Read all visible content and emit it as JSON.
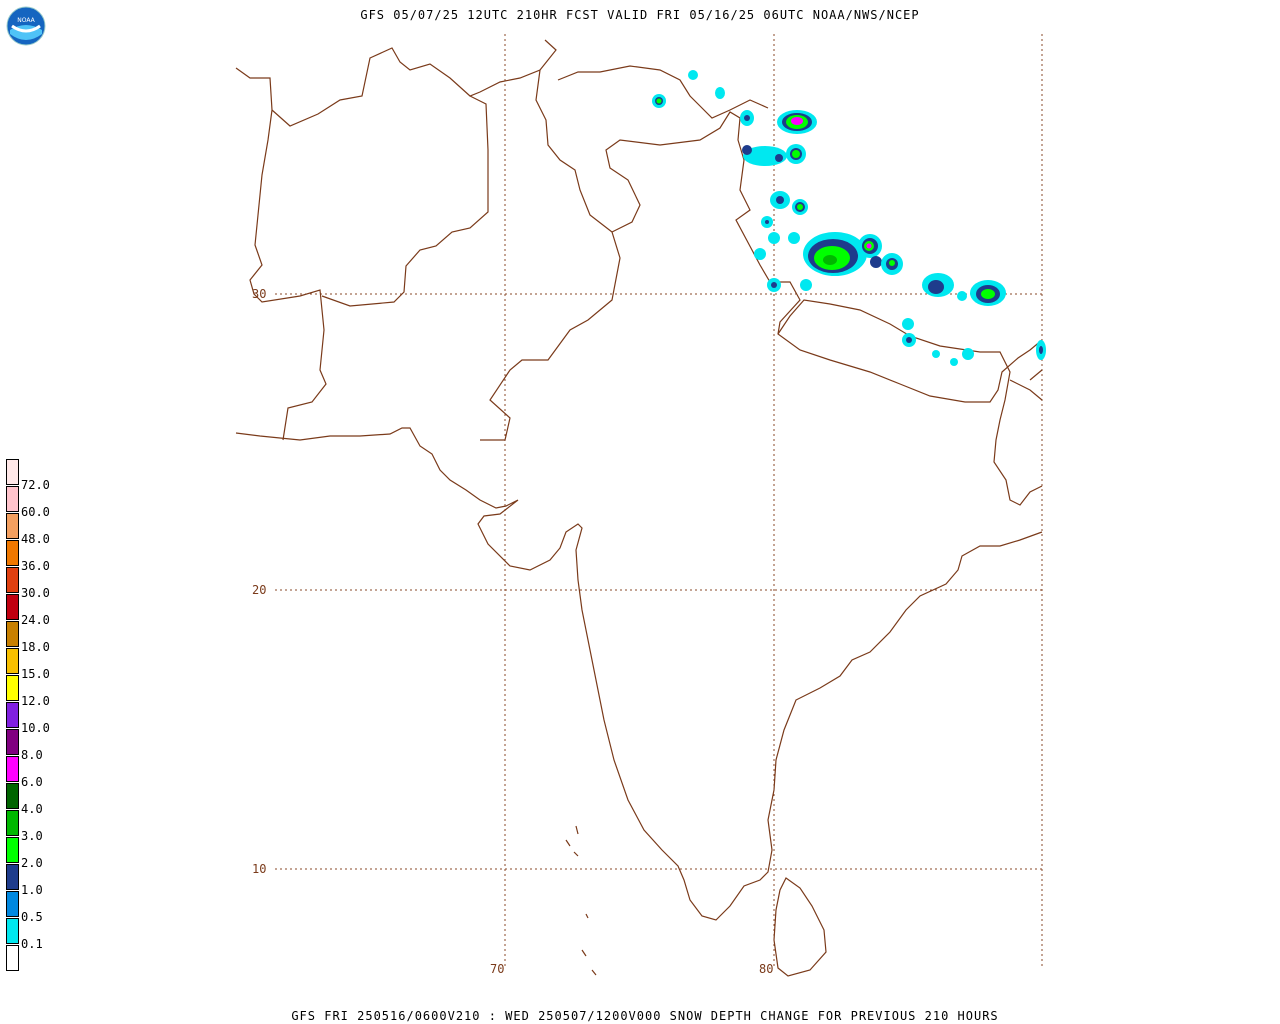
{
  "header": {
    "title": "GFS 05/07/25 12UTC 210HR FCST VALID FRI 05/16/25 06UTC NOAA/NWS/NCEP"
  },
  "footer": {
    "text": "GFS FRI 250516/0600V210 : WED 250507/1200V000 SNOW DEPTH CHANGE FOR PREVIOUS 210 HOURS"
  },
  "logo": {
    "text": "NOAA",
    "icon": "noaa-logo-icon"
  },
  "map": {
    "latitude_labels": [
      "30",
      "20",
      "10"
    ],
    "longitude_labels": [
      "70",
      "80"
    ],
    "coastline_color": "#7a3a1a",
    "grid_color": "#8a4a2a"
  },
  "legend": {
    "entries": [
      {
        "label": "72.0",
        "color": "#ffc4cc"
      },
      {
        "label": "60.0",
        "color": "#f4a060"
      },
      {
        "label": "48.0",
        "color": "#f07800"
      },
      {
        "label": "36.0",
        "color": "#e04010"
      },
      {
        "label": "30.0",
        "color": "#c00010"
      },
      {
        "label": "24.0",
        "color": "#c88000"
      },
      {
        "label": "18.0",
        "color": "#f8c000"
      },
      {
        "label": "15.0",
        "color": "#ffff00"
      },
      {
        "label": "12.0",
        "color": "#8020e0"
      },
      {
        "label": "10.0",
        "color": "#800080"
      },
      {
        "label": "8.0",
        "color": "#ff00ff"
      },
      {
        "label": "6.0",
        "color": "#006400"
      },
      {
        "label": "4.0",
        "color": "#00b800"
      },
      {
        "label": "3.0",
        "color": "#00ff00"
      },
      {
        "label": "2.0",
        "color": "#1e3c8c"
      },
      {
        "label": "1.0",
        "color": "#0088e0"
      },
      {
        "label": "0.5",
        "color": "#00e8f0"
      },
      {
        "label": "0.1",
        "color": "#ffffff"
      }
    ],
    "top_color": "#ffe8e8"
  }
}
